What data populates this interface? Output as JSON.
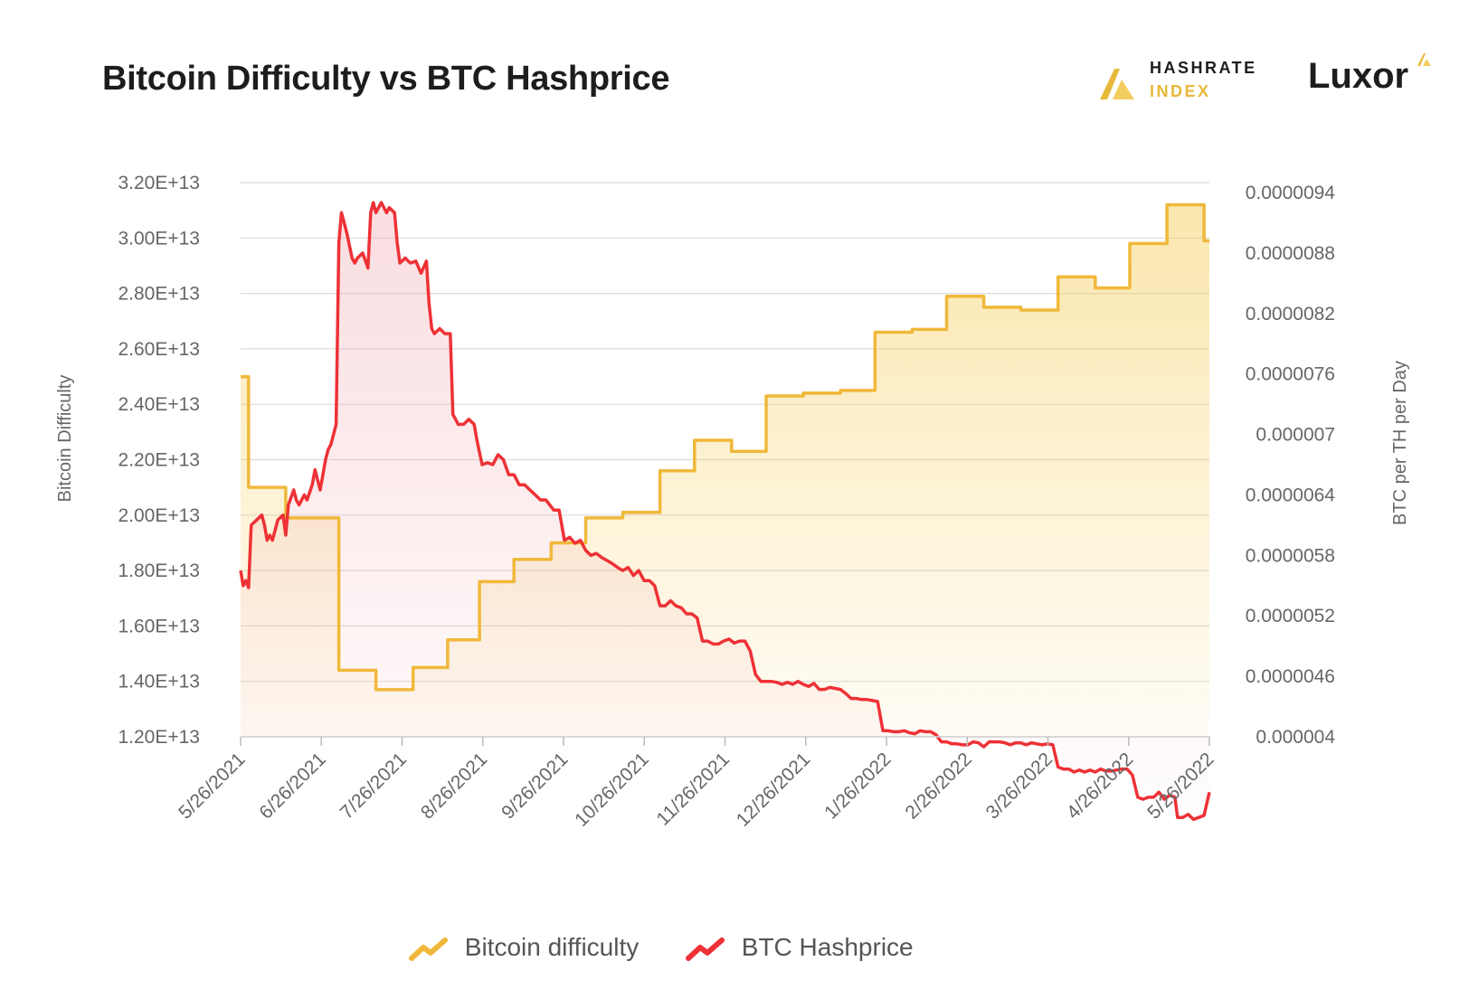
{
  "title": "Bitcoin Difficulty vs BTC Hashprice",
  "brands": {
    "hashrate_line1": "HASHRATE",
    "hashrate_line2": "INDEX",
    "luxor": "Luxor"
  },
  "legend": {
    "difficulty": "Bitcoin difficulty",
    "hashprice": "BTC Hashprice"
  },
  "colors": {
    "difficulty": "#f0b83a",
    "hashprice": "#ee3136",
    "grid": "#dcdcdc",
    "text": "#666666"
  },
  "chart_data": {
    "type": "line",
    "ylabel_left": "Bitcoin Difficulty",
    "ylabel_right": "BTC per TH per Day",
    "x_ticks": [
      "5/26/2021",
      "6/26/2021",
      "7/26/2021",
      "8/26/2021",
      "9/26/2021",
      "10/26/2021",
      "11/26/2021",
      "12/26/2021",
      "1/26/2022",
      "2/26/2022",
      "3/26/2022",
      "4/26/2022",
      "5/26/2022"
    ],
    "y_left_ticks": [
      "1.20E+13",
      "1.40E+13",
      "1.60E+13",
      "1.80E+13",
      "2.00E+13",
      "2.20E+13",
      "2.40E+13",
      "2.60E+13",
      "2.80E+13",
      "3.00E+13",
      "3.20E+13"
    ],
    "y_right_ticks": [
      "0.000004",
      "0.0000046",
      "0.0000052",
      "0.0000058",
      "0.0000064",
      "0.000007",
      "0.0000076",
      "0.0000082",
      "0.0000088",
      "0.0000094"
    ],
    "y_left_range": [
      12000000000000.0,
      32000000000000.0
    ],
    "y_right_range": [
      4e-06,
      9.4e-06
    ],
    "x_range_days": [
      0,
      365
    ],
    "series": [
      {
        "name": "Bitcoin difficulty",
        "axis": "left",
        "points": [
          [
            0,
            25.0
          ],
          [
            3,
            25.0
          ],
          [
            3,
            21.0
          ],
          [
            17,
            21.0
          ],
          [
            17,
            19.9
          ],
          [
            37,
            19.9
          ],
          [
            37,
            14.4
          ],
          [
            51,
            14.4
          ],
          [
            51,
            13.7
          ],
          [
            65,
            13.7
          ],
          [
            65,
            14.5
          ],
          [
            78,
            14.5
          ],
          [
            78,
            15.5
          ],
          [
            90,
            15.5
          ],
          [
            90,
            17.6
          ],
          [
            103,
            17.6
          ],
          [
            103,
            18.4
          ],
          [
            117,
            18.4
          ],
          [
            117,
            19.0
          ],
          [
            130,
            19.0
          ],
          [
            130,
            19.9
          ],
          [
            144,
            19.9
          ],
          [
            144,
            20.1
          ],
          [
            158,
            20.1
          ],
          [
            158,
            21.6
          ],
          [
            171,
            21.6
          ],
          [
            171,
            22.7
          ],
          [
            185,
            22.7
          ],
          [
            185,
            22.3
          ],
          [
            198,
            22.3
          ],
          [
            198,
            24.3
          ],
          [
            212,
            24.3
          ],
          [
            212,
            24.4
          ],
          [
            226,
            24.4
          ],
          [
            226,
            24.5
          ],
          [
            239,
            24.5
          ],
          [
            239,
            26.6
          ],
          [
            253,
            26.6
          ],
          [
            253,
            26.7
          ],
          [
            266,
            26.7
          ],
          [
            266,
            27.9
          ],
          [
            280,
            27.9
          ],
          [
            280,
            27.5
          ],
          [
            294,
            27.5
          ],
          [
            294,
            27.4
          ],
          [
            308,
            27.4
          ],
          [
            308,
            28.6
          ],
          [
            322,
            28.6
          ],
          [
            322,
            28.2
          ],
          [
            335,
            28.2
          ],
          [
            335,
            29.8
          ],
          [
            349,
            29.8
          ],
          [
            349,
            31.2
          ],
          [
            363,
            31.2
          ],
          [
            363,
            29.9
          ],
          [
            365,
            29.9
          ]
        ]
      },
      {
        "name": "BTC Hashprice",
        "axis": "right",
        "points": [
          [
            0,
            5.65
          ],
          [
            1,
            5.5
          ],
          [
            2,
            5.55
          ],
          [
            3,
            5.48
          ],
          [
            4,
            6.1
          ],
          [
            6,
            6.15
          ],
          [
            8,
            6.2
          ],
          [
            9,
            6.1
          ],
          [
            10,
            5.95
          ],
          [
            11,
            6.0
          ],
          [
            12,
            5.95
          ],
          [
            14,
            6.15
          ],
          [
            16,
            6.2
          ],
          [
            17,
            6.0
          ],
          [
            18,
            6.3
          ],
          [
            20,
            6.45
          ],
          [
            21,
            6.35
          ],
          [
            22,
            6.3
          ],
          [
            24,
            6.4
          ],
          [
            25,
            6.35
          ],
          [
            27,
            6.5
          ],
          [
            28,
            6.65
          ],
          [
            30,
            6.45
          ],
          [
            32,
            6.75
          ],
          [
            33,
            6.85
          ],
          [
            34,
            6.9
          ],
          [
            36,
            7.1
          ],
          [
            37,
            8.9
          ],
          [
            38,
            9.2
          ],
          [
            40,
            9.0
          ],
          [
            42,
            8.75
          ],
          [
            43,
            8.7
          ],
          [
            44,
            8.75
          ],
          [
            46,
            8.8
          ],
          [
            48,
            8.65
          ],
          [
            49,
            9.2
          ],
          [
            50,
            9.3
          ],
          [
            51,
            9.2
          ],
          [
            53,
            9.3
          ],
          [
            55,
            9.2
          ],
          [
            56,
            9.25
          ],
          [
            58,
            9.2
          ],
          [
            59,
            8.9
          ],
          [
            60,
            8.7
          ],
          [
            62,
            8.75
          ],
          [
            64,
            8.7
          ],
          [
            66,
            8.72
          ],
          [
            68,
            8.6
          ],
          [
            70,
            8.72
          ],
          [
            71,
            8.3
          ],
          [
            72,
            8.05
          ],
          [
            73,
            8.0
          ],
          [
            75,
            8.05
          ],
          [
            77,
            8.0
          ],
          [
            79,
            8.0
          ],
          [
            80,
            7.2
          ],
          [
            82,
            7.1
          ],
          [
            84,
            7.1
          ],
          [
            86,
            7.15
          ],
          [
            88,
            7.1
          ],
          [
            89,
            6.95
          ],
          [
            91,
            6.7
          ],
          [
            93,
            6.72
          ],
          [
            95,
            6.7
          ],
          [
            97,
            6.8
          ],
          [
            99,
            6.75
          ],
          [
            101,
            6.6
          ],
          [
            103,
            6.6
          ],
          [
            105,
            6.5
          ],
          [
            107,
            6.5
          ],
          [
            109,
            6.45
          ],
          [
            111,
            6.4
          ],
          [
            113,
            6.35
          ],
          [
            115,
            6.35
          ],
          [
            118,
            6.25
          ],
          [
            120,
            6.25
          ],
          [
            122,
            5.95
          ],
          [
            124,
            5.98
          ],
          [
            126,
            5.92
          ],
          [
            128,
            5.95
          ],
          [
            130,
            5.85
          ],
          [
            132,
            5.8
          ],
          [
            134,
            5.82
          ],
          [
            136,
            5.78
          ],
          [
            138,
            5.75
          ],
          [
            140,
            5.72
          ],
          [
            142,
            5.68
          ],
          [
            144,
            5.65
          ],
          [
            146,
            5.68
          ],
          [
            148,
            5.6
          ],
          [
            150,
            5.65
          ],
          [
            152,
            5.55
          ],
          [
            154,
            5.55
          ],
          [
            156,
            5.5
          ],
          [
            158,
            5.3
          ],
          [
            160,
            5.3
          ],
          [
            162,
            5.35
          ],
          [
            164,
            5.3
          ],
          [
            166,
            5.28
          ],
          [
            168,
            5.22
          ],
          [
            170,
            5.22
          ],
          [
            172,
            5.18
          ],
          [
            174,
            4.95
          ],
          [
            176,
            4.95
          ],
          [
            178,
            4.92
          ],
          [
            180,
            4.92
          ],
          [
            182,
            4.95
          ],
          [
            184,
            4.97
          ],
          [
            186,
            4.93
          ],
          [
            188,
            4.95
          ],
          [
            190,
            4.95
          ],
          [
            192,
            4.85
          ],
          [
            194,
            4.62
          ],
          [
            196,
            4.55
          ],
          [
            198,
            4.55
          ],
          [
            200,
            4.55
          ],
          [
            202,
            4.54
          ],
          [
            204,
            4.52
          ],
          [
            206,
            4.54
          ],
          [
            208,
            4.52
          ],
          [
            210,
            4.55
          ],
          [
            212,
            4.52
          ],
          [
            214,
            4.5
          ],
          [
            216,
            4.53
          ],
          [
            218,
            4.47
          ],
          [
            220,
            4.47
          ],
          [
            222,
            4.49
          ],
          [
            224,
            4.48
          ],
          [
            226,
            4.47
          ],
          [
            228,
            4.43
          ],
          [
            230,
            4.38
          ],
          [
            232,
            4.38
          ],
          [
            234,
            4.37
          ],
          [
            236,
            4.37
          ],
          [
            238,
            4.36
          ],
          [
            240,
            4.35
          ],
          [
            242,
            4.06
          ],
          [
            244,
            4.06
          ],
          [
            246,
            4.05
          ],
          [
            248,
            4.05
          ],
          [
            250,
            4.06
          ],
          [
            252,
            4.04
          ],
          [
            254,
            4.03
          ],
          [
            256,
            4.06
          ],
          [
            258,
            4.05
          ],
          [
            260,
            4.05
          ],
          [
            262,
            4.02
          ],
          [
            264,
            3.95
          ],
          [
            266,
            3.95
          ],
          [
            268,
            3.93
          ],
          [
            270,
            3.93
          ],
          [
            272,
            3.92
          ],
          [
            274,
            3.92
          ],
          [
            276,
            3.95
          ],
          [
            278,
            3.94
          ],
          [
            280,
            3.9
          ],
          [
            282,
            3.95
          ],
          [
            284,
            3.95
          ],
          [
            286,
            3.95
          ],
          [
            288,
            3.94
          ],
          [
            290,
            3.92
          ],
          [
            292,
            3.94
          ],
          [
            294,
            3.94
          ],
          [
            296,
            3.92
          ],
          [
            298,
            3.94
          ],
          [
            300,
            3.93
          ],
          [
            302,
            3.92
          ],
          [
            304,
            3.93
          ],
          [
            306,
            3.92
          ],
          [
            308,
            3.7
          ],
          [
            310,
            3.68
          ],
          [
            312,
            3.68
          ],
          [
            314,
            3.65
          ],
          [
            316,
            3.67
          ],
          [
            318,
            3.65
          ],
          [
            320,
            3.67
          ],
          [
            322,
            3.65
          ],
          [
            324,
            3.68
          ],
          [
            326,
            3.66
          ],
          [
            328,
            3.66
          ],
          [
            330,
            3.67
          ],
          [
            332,
            3.68
          ],
          [
            334,
            3.68
          ],
          [
            336,
            3.62
          ],
          [
            338,
            3.4
          ],
          [
            340,
            3.38
          ],
          [
            342,
            3.4
          ],
          [
            344,
            3.4
          ],
          [
            346,
            3.45
          ],
          [
            348,
            3.38
          ],
          [
            350,
            3.42
          ],
          [
            352,
            3.4
          ],
          [
            353,
            3.2
          ],
          [
            355,
            3.2
          ],
          [
            357,
            3.23
          ],
          [
            359,
            3.18
          ],
          [
            361,
            3.2
          ],
          [
            363,
            3.22
          ],
          [
            365,
            3.45
          ]
        ]
      }
    ]
  }
}
